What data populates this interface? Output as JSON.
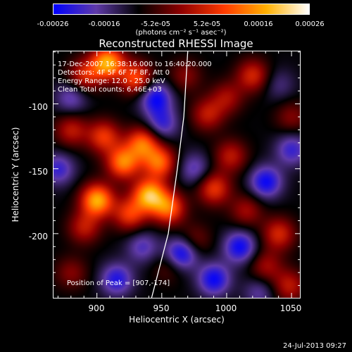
{
  "colorbar": {
    "ticks": [
      "-0.00026",
      "-0.00016",
      "-5.2e-05",
      "5.2e-05",
      "0.00016",
      "0.00026"
    ],
    "units": "(photons cm⁻² s⁻¹ asec⁻²)",
    "colors": [
      "#0000ff",
      "#5f3aa8",
      "#000000",
      "#8f0000",
      "#ff3a00",
      "#ffb000",
      "#ffffff"
    ]
  },
  "chart_data": {
    "type": "heatmap",
    "title": "Reconstructed RHESSI Image",
    "xlabel": "Heliocentric X (arcsec)",
    "ylabel": "Heliocentric Y (arcsec)",
    "xlim": [
      866,
      1057
    ],
    "ylim": [
      -250,
      -59
    ],
    "xticks": [
      "900",
      "950",
      "1000",
      "1050"
    ],
    "yticks": [
      "-100",
      "-150",
      "-200"
    ],
    "info_lines": [
      "17-Dec-2007 16:38:16.000 to 16:40:20.000",
      "Detectors: 4F 5F 6F 7F 8F, Att 0",
      "Energy Range: 12.0 - 25.0 keV",
      "Clean     Total counts: 6.46E+03"
    ],
    "peak_label": "Position of Peak = [907,-174]",
    "limb_color": "#ffffff",
    "blobs": [
      {
        "x": 908,
        "y": -68,
        "amp": 0.00026
      },
      {
        "x": 890,
        "y": -78,
        "amp": 0.00014
      },
      {
        "x": 930,
        "y": -80,
        "amp": 0.00018
      },
      {
        "x": 1020,
        "y": -78,
        "amp": 0.00014
      },
      {
        "x": 968,
        "y": -78,
        "amp": 8e-05
      },
      {
        "x": 880,
        "y": -120,
        "amp": 0.00012
      },
      {
        "x": 905,
        "y": -125,
        "amp": 0.00016
      },
      {
        "x": 935,
        "y": -130,
        "amp": 0.0002
      },
      {
        "x": 920,
        "y": -145,
        "amp": 0.00022
      },
      {
        "x": 948,
        "y": -145,
        "amp": 0.0002
      },
      {
        "x": 900,
        "y": -174,
        "amp": 0.00026
      },
      {
        "x": 940,
        "y": -170,
        "amp": 0.00026
      },
      {
        "x": 955,
        "y": -180,
        "amp": 0.0002
      },
      {
        "x": 925,
        "y": -185,
        "amp": 0.00016
      },
      {
        "x": 890,
        "y": -195,
        "amp": 0.00012
      },
      {
        "x": 990,
        "y": -165,
        "amp": 0.00016
      },
      {
        "x": 1003,
        "y": -140,
        "amp": 0.00012
      },
      {
        "x": 1000,
        "y": -95,
        "amp": 0.0001
      },
      {
        "x": 985,
        "y": -108,
        "amp": 0.00012
      },
      {
        "x": 1050,
        "y": -110,
        "amp": 8e-05
      },
      {
        "x": 1040,
        "y": -200,
        "amp": 0.00014
      },
      {
        "x": 1048,
        "y": -240,
        "amp": 0.00012
      },
      {
        "x": 1030,
        "y": -225,
        "amp": 0.0001
      },
      {
        "x": 975,
        "y": -205,
        "amp": 8e-05
      },
      {
        "x": 880,
        "y": -230,
        "amp": 8e-05
      },
      {
        "x": 955,
        "y": -225,
        "amp": 6e-05
      },
      {
        "x": 1015,
        "y": -182,
        "amp": 0.0001
      },
      {
        "x": 1030,
        "y": -160,
        "amp": -0.00016
      },
      {
        "x": 945,
        "y": -95,
        "amp": -0.00016
      },
      {
        "x": 950,
        "y": -115,
        "amp": -0.00012
      },
      {
        "x": 870,
        "y": -150,
        "amp": -0.00012
      },
      {
        "x": 1010,
        "y": -210,
        "amp": -0.00016
      },
      {
        "x": 965,
        "y": -215,
        "amp": -0.00018
      },
      {
        "x": 990,
        "y": -235,
        "amp": -0.00016
      },
      {
        "x": 915,
        "y": -235,
        "amp": -0.00014
      },
      {
        "x": 1050,
        "y": -135,
        "amp": -0.00012
      },
      {
        "x": 975,
        "y": -150,
        "amp": -0.0001
      },
      {
        "x": 880,
        "y": -95,
        "amp": -0.0001
      },
      {
        "x": 1040,
        "y": -85,
        "amp": -6e-05
      },
      {
        "x": 935,
        "y": -210,
        "amp": -0.0001
      },
      {
        "x": 1025,
        "y": -245,
        "amp": -8e-05
      }
    ],
    "limb": [
      [
        942,
        -250
      ],
      [
        955,
        -200
      ],
      [
        962,
        -150
      ],
      [
        967,
        -110
      ],
      [
        970,
        -59
      ]
    ]
  },
  "footer": {
    "date": "24-Jul-2013 09:27"
  }
}
